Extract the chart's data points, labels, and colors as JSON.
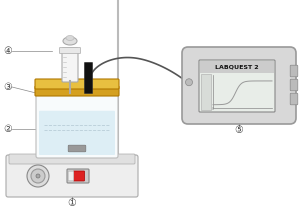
{
  "bg_color": "#ffffff",
  "device_label": "LABQUEST 2",
  "labels": [
    "①",
    "②",
    "③",
    "④",
    "⑤"
  ],
  "hotplate_color": "#eeeeee",
  "hotplate_border": "#aaaaaa",
  "hotplate_top_color": "#e0e0e0",
  "beaker_color": "#e8f4f8",
  "beaker_border": "#bbbbbb",
  "beaker_liquid_color": "#ddeef5",
  "lid_color_top": "#e8c040",
  "lid_color_mid": "#d4a020",
  "labquest_color": "#d8d8d8",
  "labquest_border": "#999999",
  "screen_bg": "#e8ede8",
  "screen_border": "#888888",
  "screen_title_bg": "#cccccc",
  "graph_color": "#aaaaaa",
  "wire_color": "#555555",
  "rod_color": "#bbbbbb",
  "probe_color": "#333333",
  "syringe_body_color": "#f5f5f5",
  "syringe_border": "#aaaaaa",
  "label_color": "#444444"
}
